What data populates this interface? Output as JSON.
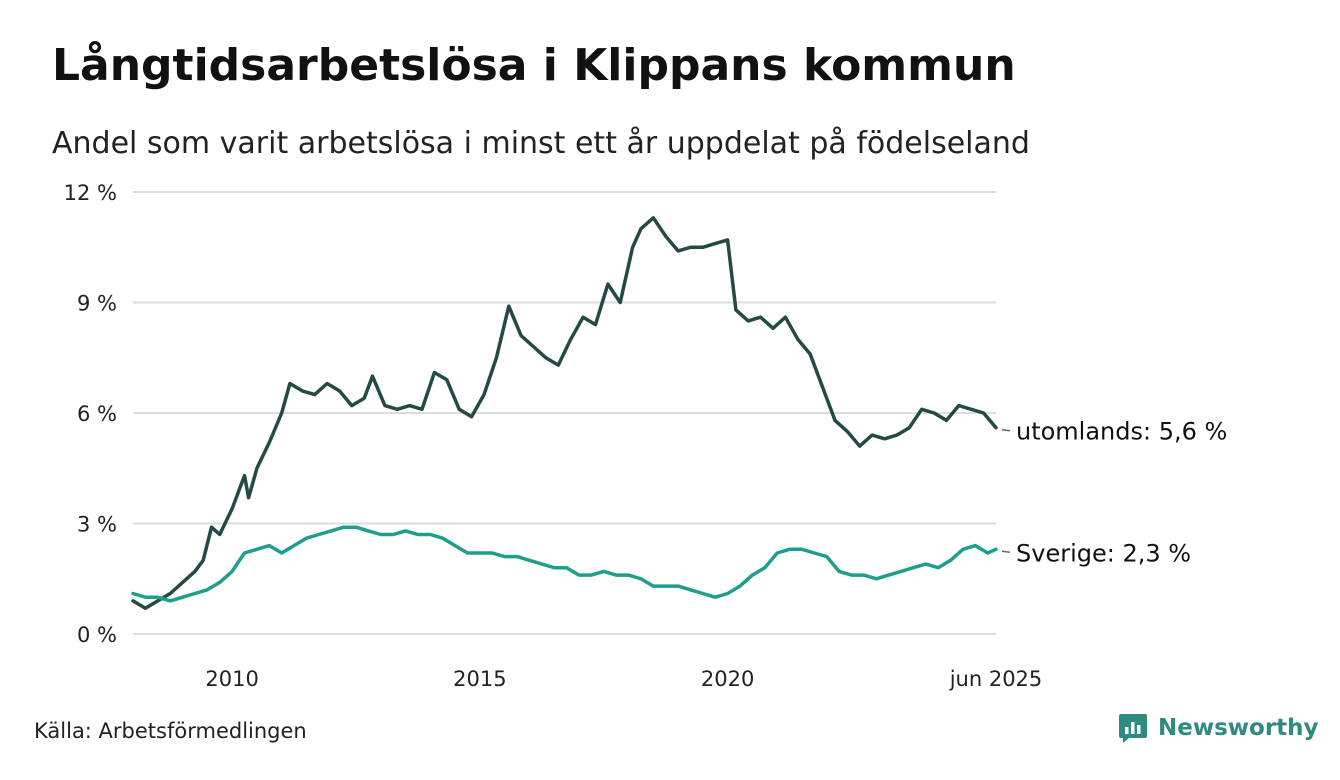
{
  "header": {
    "title": "Långtidsarbetslösa i Klippans kommun",
    "subtitle": "Andel som varit arbetslösa i minst ett år uppdelat på födelseland"
  },
  "footer": {
    "source": "Källa: Arbetsförmedlingen",
    "brand": "Newsworthy"
  },
  "colors": {
    "utomlands": "#244a44",
    "sverige": "#1f9e8c",
    "grid": "#dddddd",
    "brand": "#2f8a80"
  },
  "chart_data": {
    "type": "line",
    "title": "Långtidsarbetslösa i Klippans kommun",
    "subtitle": "Andel som varit arbetslösa i minst ett år uppdelat på födelseland",
    "xlabel": "",
    "ylabel": "",
    "xlim": [
      "2008-01",
      "2025-06"
    ],
    "ylim": [
      0,
      12
    ],
    "y_ticks": [
      {
        "value": 0,
        "label": "0 %"
      },
      {
        "value": 3,
        "label": "3 %"
      },
      {
        "value": 6,
        "label": "6 %"
      },
      {
        "value": 9,
        "label": "9 %"
      },
      {
        "value": 12,
        "label": "12 %"
      }
    ],
    "x_ticks": [
      {
        "value": "2010-01",
        "label": "2010"
      },
      {
        "value": "2015-01",
        "label": "2015"
      },
      {
        "value": "2020-01",
        "label": "2020"
      },
      {
        "value": "2025-06",
        "label": "jun 2025"
      }
    ],
    "grid": true,
    "legend": "end-labels",
    "series": [
      {
        "key": "utomlands",
        "end_label": "utomlands: 5,6 %",
        "points": [
          [
            "2008-01",
            0.9
          ],
          [
            "2008-04",
            0.7
          ],
          [
            "2008-07",
            0.9
          ],
          [
            "2008-10",
            1.1
          ],
          [
            "2009-01",
            1.4
          ],
          [
            "2009-04",
            1.7
          ],
          [
            "2009-06",
            2.0
          ],
          [
            "2009-08",
            2.9
          ],
          [
            "2009-10",
            2.7
          ],
          [
            "2010-01",
            3.4
          ],
          [
            "2010-04",
            4.3
          ],
          [
            "2010-05",
            3.7
          ],
          [
            "2010-07",
            4.5
          ],
          [
            "2010-10",
            5.2
          ],
          [
            "2011-01",
            6.0
          ],
          [
            "2011-03",
            6.8
          ],
          [
            "2011-06",
            6.6
          ],
          [
            "2011-09",
            6.5
          ],
          [
            "2011-12",
            6.8
          ],
          [
            "2012-03",
            6.6
          ],
          [
            "2012-06",
            6.2
          ],
          [
            "2012-09",
            6.4
          ],
          [
            "2012-11",
            7.0
          ],
          [
            "2013-02",
            6.2
          ],
          [
            "2013-05",
            6.1
          ],
          [
            "2013-08",
            6.2
          ],
          [
            "2013-11",
            6.1
          ],
          [
            "2014-02",
            7.1
          ],
          [
            "2014-05",
            6.9
          ],
          [
            "2014-08",
            6.1
          ],
          [
            "2014-11",
            5.9
          ],
          [
            "2015-02",
            6.5
          ],
          [
            "2015-05",
            7.5
          ],
          [
            "2015-08",
            8.9
          ],
          [
            "2015-11",
            8.1
          ],
          [
            "2016-02",
            7.8
          ],
          [
            "2016-05",
            7.5
          ],
          [
            "2016-08",
            7.3
          ],
          [
            "2016-11",
            8.0
          ],
          [
            "2017-02",
            8.6
          ],
          [
            "2017-05",
            8.4
          ],
          [
            "2017-08",
            9.5
          ],
          [
            "2017-11",
            9.0
          ],
          [
            "2018-02",
            10.5
          ],
          [
            "2018-04",
            11.0
          ],
          [
            "2018-07",
            11.3
          ],
          [
            "2018-10",
            10.8
          ],
          [
            "2019-01",
            10.4
          ],
          [
            "2019-04",
            10.5
          ],
          [
            "2019-07",
            10.5
          ],
          [
            "2019-10",
            10.6
          ],
          [
            "2020-01",
            10.7
          ],
          [
            "2020-03",
            8.8
          ],
          [
            "2020-06",
            8.5
          ],
          [
            "2020-09",
            8.6
          ],
          [
            "2020-12",
            8.3
          ],
          [
            "2021-03",
            8.6
          ],
          [
            "2021-06",
            8.0
          ],
          [
            "2021-09",
            7.6
          ],
          [
            "2021-12",
            6.7
          ],
          [
            "2022-03",
            5.8
          ],
          [
            "2022-06",
            5.5
          ],
          [
            "2022-09",
            5.1
          ],
          [
            "2022-12",
            5.4
          ],
          [
            "2023-03",
            5.3
          ],
          [
            "2023-06",
            5.4
          ],
          [
            "2023-09",
            5.6
          ],
          [
            "2023-12",
            6.1
          ],
          [
            "2024-03",
            6.0
          ],
          [
            "2024-06",
            5.8
          ],
          [
            "2024-09",
            6.2
          ],
          [
            "2024-12",
            6.1
          ],
          [
            "2025-03",
            6.0
          ],
          [
            "2025-06",
            5.6
          ]
        ]
      },
      {
        "key": "sverige",
        "end_label": "Sverige: 2,3 %",
        "points": [
          [
            "2008-01",
            1.1
          ],
          [
            "2008-04",
            1.0
          ],
          [
            "2008-07",
            1.0
          ],
          [
            "2008-10",
            0.9
          ],
          [
            "2009-01",
            1.0
          ],
          [
            "2009-04",
            1.1
          ],
          [
            "2009-07",
            1.2
          ],
          [
            "2009-10",
            1.4
          ],
          [
            "2010-01",
            1.7
          ],
          [
            "2010-04",
            2.2
          ],
          [
            "2010-07",
            2.3
          ],
          [
            "2010-10",
            2.4
          ],
          [
            "2011-01",
            2.2
          ],
          [
            "2011-04",
            2.4
          ],
          [
            "2011-07",
            2.6
          ],
          [
            "2011-10",
            2.7
          ],
          [
            "2012-01",
            2.8
          ],
          [
            "2012-04",
            2.9
          ],
          [
            "2012-07",
            2.9
          ],
          [
            "2012-10",
            2.8
          ],
          [
            "2013-01",
            2.7
          ],
          [
            "2013-04",
            2.7
          ],
          [
            "2013-07",
            2.8
          ],
          [
            "2013-10",
            2.7
          ],
          [
            "2014-01",
            2.7
          ],
          [
            "2014-04",
            2.6
          ],
          [
            "2014-07",
            2.4
          ],
          [
            "2014-10",
            2.2
          ],
          [
            "2015-01",
            2.2
          ],
          [
            "2015-04",
            2.2
          ],
          [
            "2015-07",
            2.1
          ],
          [
            "2015-10",
            2.1
          ],
          [
            "2016-01",
            2.0
          ],
          [
            "2016-04",
            1.9
          ],
          [
            "2016-07",
            1.8
          ],
          [
            "2016-10",
            1.8
          ],
          [
            "2017-01",
            1.6
          ],
          [
            "2017-04",
            1.6
          ],
          [
            "2017-07",
            1.7
          ],
          [
            "2017-10",
            1.6
          ],
          [
            "2018-01",
            1.6
          ],
          [
            "2018-04",
            1.5
          ],
          [
            "2018-07",
            1.3
          ],
          [
            "2018-10",
            1.3
          ],
          [
            "2019-01",
            1.3
          ],
          [
            "2019-04",
            1.2
          ],
          [
            "2019-07",
            1.1
          ],
          [
            "2019-10",
            1.0
          ],
          [
            "2020-01",
            1.1
          ],
          [
            "2020-04",
            1.3
          ],
          [
            "2020-07",
            1.6
          ],
          [
            "2020-10",
            1.8
          ],
          [
            "2021-01",
            2.2
          ],
          [
            "2021-04",
            2.3
          ],
          [
            "2021-07",
            2.3
          ],
          [
            "2021-10",
            2.2
          ],
          [
            "2022-01",
            2.1
          ],
          [
            "2022-04",
            1.7
          ],
          [
            "2022-07",
            1.6
          ],
          [
            "2022-10",
            1.6
          ],
          [
            "2023-01",
            1.5
          ],
          [
            "2023-04",
            1.6
          ],
          [
            "2023-07",
            1.7
          ],
          [
            "2023-10",
            1.8
          ],
          [
            "2024-01",
            1.9
          ],
          [
            "2024-04",
            1.8
          ],
          [
            "2024-07",
            2.0
          ],
          [
            "2024-10",
            2.3
          ],
          [
            "2025-01",
            2.4
          ],
          [
            "2025-04",
            2.2
          ],
          [
            "2025-06",
            2.3
          ]
        ]
      }
    ]
  }
}
